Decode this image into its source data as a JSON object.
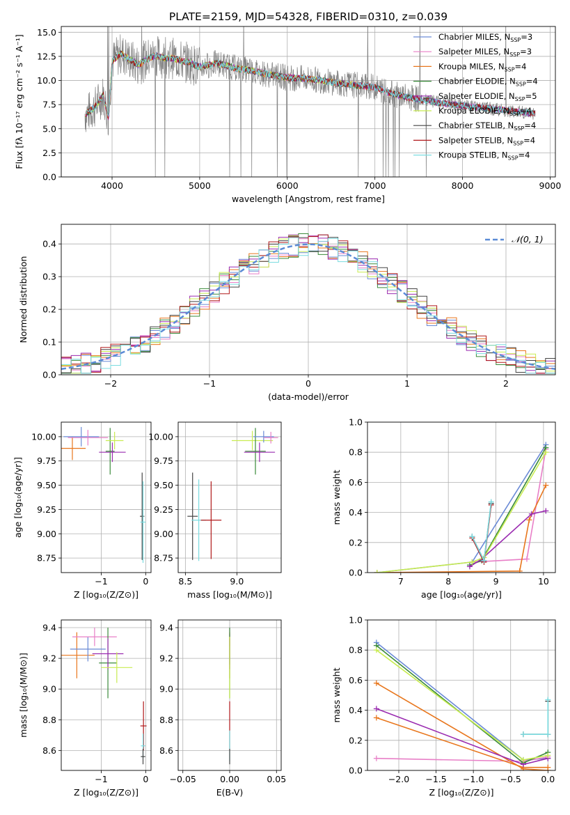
{
  "figure_title": "PLATE=2159, MJD=54328, FIBERID=0310, z=0.039",
  "model_colors": {
    "Chabrier MILES": "#6a8ad6",
    "Salpeter MILES": "#e87fc7",
    "Kroupa MILES": "#e8761c",
    "Chabrier ELODIE": "#3a8a3a",
    "Salpeter ELODIE": "#9a2ab0",
    "Kroupa ELODIE": "#c8ec50",
    "Chabrier STELIB": "#444444",
    "Salpeter STELIB": "#b0181a",
    "Kroupa STELIB": "#7adce0"
  },
  "chart_data": [
    {
      "id": "spectrum",
      "type": "line",
      "title": "PLATE=2159, MJD=54328, FIBERID=0310, z=0.039",
      "xlabel": "wavelength [Angstrom, rest frame]",
      "ylabel": "Flux [fλ 10⁻¹⁷ erg cm⁻² s⁻¹ A⁻¹]",
      "xlim": [
        3420,
        9060
      ],
      "ylim": [
        0,
        15.6
      ],
      "xticks": [
        4000,
        5000,
        6000,
        7000,
        8000,
        9000
      ],
      "yticks": [
        0.0,
        2.5,
        5.0,
        7.5,
        10.0,
        12.5,
        15.0
      ],
      "ytick_labels": [
        "0.0",
        "2.5",
        "5.0",
        "7.5",
        "10.0",
        "12.5",
        "15.0"
      ],
      "legend_position": "upper-right",
      "legend": [
        {
          "label": "Chabrier MILES, N",
          "sub": "SSP",
          "tail": "=3",
          "color": "#6a8ad6"
        },
        {
          "label": "Salpeter MILES, N",
          "sub": "SSP",
          "tail": "=3",
          "color": "#e87fc7"
        },
        {
          "label": "Kroupa MILES, N",
          "sub": "SSP",
          "tail": "=4",
          "color": "#e8761c"
        },
        {
          "label": "Chabrier ELODIE, N",
          "sub": "SSP",
          "tail": "=4",
          "color": "#3a8a3a"
        },
        {
          "label": "Salpeter ELODIE, N",
          "sub": "SSP",
          "tail": "=5",
          "color": "#9a2ab0"
        },
        {
          "label": "Kroupa ELODIE, N",
          "sub": "SSP",
          "tail": "=4",
          "color": "#c8ec50"
        },
        {
          "label": "Chabrier STELIB, N",
          "sub": "SSP",
          "tail": "=4",
          "color": "#444444"
        },
        {
          "label": "Salpeter STELIB, N",
          "sub": "SSP",
          "tail": "=4",
          "color": "#b0181a"
        },
        {
          "label": "Kroupa STELIB, N",
          "sub": "SSP",
          "tail": "=4",
          "color": "#7adce0"
        }
      ],
      "data_points": [
        [
          3700,
          6.5
        ],
        [
          3800,
          7.2
        ],
        [
          3900,
          8.5
        ],
        [
          3960,
          6.0
        ],
        [
          4000,
          12.0
        ],
        [
          4100,
          12.8
        ],
        [
          4200,
          12.2
        ],
        [
          4300,
          11.6
        ],
        [
          4400,
          12.2
        ],
        [
          4500,
          12.6
        ],
        [
          4600,
          12.3
        ],
        [
          4700,
          12.3
        ],
        [
          4800,
          12.0
        ],
        [
          4900,
          11.8
        ],
        [
          5000,
          11.4
        ],
        [
          5200,
          11.8
        ],
        [
          5400,
          11.3
        ],
        [
          5600,
          11.0
        ],
        [
          5800,
          10.6
        ],
        [
          6000,
          10.3
        ],
        [
          6200,
          10.2
        ],
        [
          6400,
          10.0
        ],
        [
          6600,
          9.7
        ],
        [
          6800,
          9.5
        ],
        [
          7000,
          9.3
        ],
        [
          7200,
          8.6
        ],
        [
          7400,
          8.2
        ],
        [
          7600,
          7.9
        ],
        [
          7800,
          7.6
        ],
        [
          8000,
          7.4
        ],
        [
          8200,
          7.2
        ],
        [
          8400,
          7.0
        ],
        [
          8600,
          6.8
        ],
        [
          8800,
          6.6
        ]
      ]
    },
    {
      "id": "residuals",
      "type": "line",
      "xlabel": "(data-model)/error",
      "ylabel": "Normed distribution",
      "xlim": [
        -2.5,
        2.5
      ],
      "ylim": [
        0,
        0.46
      ],
      "xticks": [
        -2,
        -1,
        0,
        1,
        2
      ],
      "xtick_labels": [
        "−2",
        "−1",
        "0",
        "1",
        "2"
      ],
      "yticks": [
        0.0,
        0.1,
        0.2,
        0.3,
        0.4
      ],
      "ytick_labels": [
        "0.0",
        "0.1",
        "0.2",
        "0.3",
        "0.4"
      ],
      "legend": [
        {
          "label": "𝒩(0, 1)",
          "color": "#5b8bd6",
          "dashed": true
        }
      ],
      "legend_position": "upper-right"
    },
    {
      "id": "age_vs_z",
      "type": "scatter",
      "xlabel": "Z [log₁₀(Z/Z⊙)]",
      "ylabel": "age  [log₁₀(age/yr)]",
      "xlim": [
        -1.9,
        0.12
      ],
      "ylim": [
        8.6,
        10.15
      ],
      "xticks": [
        -1,
        0
      ],
      "xtick_labels": [
        "−1",
        "0"
      ],
      "yticks": [
        8.75,
        9.0,
        9.25,
        9.5,
        9.75,
        10.0
      ],
      "ytick_labels": [
        "8.75",
        "9.00",
        "9.25",
        "9.50",
        "9.75",
        "10.00"
      ],
      "points": [
        {
          "model": "Kroupa MILES",
          "x": -1.65,
          "xe": 0.3,
          "y": 9.88,
          "ye": 0.12
        },
        {
          "model": "Chabrier MILES",
          "x": -1.45,
          "xe": 0.4,
          "y": 10.0,
          "ye": 0.1
        },
        {
          "model": "Salpeter MILES",
          "x": -1.3,
          "xe": 0.45,
          "y": 9.99,
          "ye": 0.08
        },
        {
          "model": "Chabrier ELODIE",
          "x": -0.8,
          "xe": 0.1,
          "y": 9.85,
          "ye": 0.24
        },
        {
          "model": "Salpeter ELODIE",
          "x": -0.75,
          "xe": 0.3,
          "y": 9.84,
          "ye": 0.1
        },
        {
          "model": "Kroupa ELODIE",
          "x": -0.7,
          "xe": 0.2,
          "y": 9.96,
          "ye": 0.09
        },
        {
          "model": "Chabrier STELIB",
          "x": -0.08,
          "xe": 0.05,
          "y": 9.18,
          "ye": 0.45
        },
        {
          "model": "Kroupa STELIB",
          "x": -0.06,
          "xe": 0.06,
          "y": 9.12,
          "ye": 0.42
        }
      ]
    },
    {
      "id": "age_vs_mass",
      "type": "scatter",
      "xlabel": "mass [log₁₀(M/M⊙)]",
      "ylabel": "",
      "xlim": [
        8.43,
        9.43
      ],
      "ylim": [
        8.6,
        10.15
      ],
      "xticks": [
        8.5,
        9.0
      ],
      "xtick_labels": [
        "8.5",
        "9.0"
      ],
      "yticks": [
        8.75,
        9.0,
        9.25,
        9.5,
        9.75,
        10.0
      ],
      "ytick_labels": [
        "8.75",
        "9.00",
        "9.25",
        "9.50",
        "9.75",
        "10.00"
      ],
      "points": [
        {
          "model": "Chabrier STELIB",
          "x": 8.57,
          "xe": 0.05,
          "y": 9.18,
          "ye": 0.45
        },
        {
          "model": "Kroupa STELIB",
          "x": 8.63,
          "xe": 0.07,
          "y": 9.14,
          "ye": 0.42
        },
        {
          "model": "Salpeter STELIB",
          "x": 8.75,
          "xe": 0.1,
          "y": 9.14,
          "ye": 0.4
        },
        {
          "model": "Kroupa ELODIE",
          "x": 9.15,
          "xe": 0.2,
          "y": 9.96,
          "ye": 0.1
        },
        {
          "model": "Chabrier ELODIE",
          "x": 9.18,
          "xe": 0.1,
          "y": 9.85,
          "ye": 0.24
        },
        {
          "model": "Salpeter ELODIE",
          "x": 9.22,
          "xe": 0.15,
          "y": 9.84,
          "ye": 0.1
        },
        {
          "model": "Chabrier MILES",
          "x": 9.26,
          "xe": 0.1,
          "y": 10.0,
          "ye": 0.06
        },
        {
          "model": "Salpeter MILES",
          "x": 9.33,
          "xe": 0.07,
          "y": 9.99,
          "ye": 0.06
        }
      ]
    },
    {
      "id": "massweight_vs_age",
      "type": "line",
      "xlabel": "age  [log₁₀(age/yr)]",
      "ylabel": "mass weight",
      "xlim": [
        6.3,
        10.25
      ],
      "ylim": [
        0,
        1.0
      ],
      "xticks": [
        7,
        8,
        9,
        10
      ],
      "xtick_labels": [
        "7",
        "8",
        "9",
        "10"
      ],
      "yticks": [
        0.0,
        0.2,
        0.4,
        0.6,
        0.8,
        1.0
      ],
      "ytick_labels": [
        "0.0",
        "0.2",
        "0.4",
        "0.6",
        "0.8",
        "1.0"
      ],
      "series": [
        {
          "model": "Chabrier MILES",
          "x": [
            6.5,
            8.5,
            10.05
          ],
          "y": [
            0.0,
            0.07,
            0.85
          ]
        },
        {
          "model": "Salpeter MILES",
          "x": [
            8.5,
            9.65,
            10.05
          ],
          "y": [
            0.07,
            0.09,
            0.82
          ]
        },
        {
          "model": "Kroupa MILES",
          "x": [
            6.5,
            9.5,
            9.7,
            10.05
          ],
          "y": [
            0.0,
            0.01,
            0.35,
            0.58
          ]
        },
        {
          "model": "Chabrier ELODIE",
          "x": [
            8.45,
            8.7,
            10.05
          ],
          "y": [
            0.05,
            0.08,
            0.83
          ]
        },
        {
          "model": "Salpeter ELODIE",
          "x": [
            8.45,
            8.7,
            9.75,
            10.05
          ],
          "y": [
            0.04,
            0.09,
            0.39,
            0.41
          ]
        },
        {
          "model": "Kroupa ELODIE",
          "x": [
            6.5,
            8.5,
            8.75,
            10.05
          ],
          "y": [
            0.0,
            0.07,
            0.1,
            0.8
          ]
        },
        {
          "model": "Chabrier STELIB",
          "x": [
            8.5,
            8.75,
            8.9
          ],
          "y": [
            0.24,
            0.08,
            0.46
          ]
        },
        {
          "model": "Salpeter STELIB",
          "x": [
            8.5,
            8.75,
            8.9
          ],
          "y": [
            0.23,
            0.07,
            0.45
          ]
        },
        {
          "model": "Kroupa STELIB",
          "x": [
            8.5,
            8.75,
            8.9
          ],
          "y": [
            0.24,
            0.08,
            0.47
          ]
        }
      ]
    },
    {
      "id": "mass_vs_z",
      "type": "scatter",
      "xlabel": "Z [log₁₀(Z/Z⊙)]",
      "ylabel": "mass [log₁₀(M/M⊙)]",
      "xlim": [
        -1.9,
        0.12
      ],
      "ylim": [
        8.47,
        9.45
      ],
      "xticks": [
        -1,
        0
      ],
      "xtick_labels": [
        "−1",
        "0"
      ],
      "yticks": [
        8.6,
        8.8,
        9.0,
        9.2,
        9.4
      ],
      "ytick_labels": [
        "8.6",
        "8.8",
        "9.0",
        "9.2",
        "9.4"
      ],
      "points": [
        {
          "model": "Kroupa MILES",
          "x": -1.55,
          "xe": 0.4,
          "y": 9.22,
          "ye": 0.15
        },
        {
          "model": "Chabrier MILES",
          "x": -1.3,
          "xe": 0.4,
          "y": 9.26,
          "ye": 0.08
        },
        {
          "model": "Salpeter MILES",
          "x": -1.15,
          "xe": 0.5,
          "y": 9.34,
          "ye": 0.06
        },
        {
          "model": "Chabrier ELODIE",
          "x": -0.85,
          "xe": 0.2,
          "y": 9.17,
          "ye": 0.23
        },
        {
          "model": "Salpeter ELODIE",
          "x": -0.85,
          "xe": 0.35,
          "y": 9.23,
          "ye": 0.1
        },
        {
          "model": "Kroupa ELODIE",
          "x": -0.65,
          "xe": 0.35,
          "y": 9.14,
          "ye": 0.1
        },
        {
          "model": "Salpeter STELIB",
          "x": -0.05,
          "xe": 0.07,
          "y": 8.76,
          "ye": 0.16
        },
        {
          "model": "Kroupa STELIB",
          "x": -0.06,
          "xe": 0.05,
          "y": 8.63,
          "ye": 0.08
        },
        {
          "model": "Chabrier STELIB",
          "x": -0.06,
          "xe": 0.05,
          "y": 8.56,
          "ye": 0.05
        }
      ]
    },
    {
      "id": "mass_vs_ebv",
      "type": "scatter",
      "xlabel": "E(B-V)",
      "ylabel": "",
      "xlim": [
        -0.055,
        0.055
      ],
      "ylim": [
        8.47,
        9.45
      ],
      "xticks": [
        -0.05,
        0.0,
        0.05
      ],
      "xtick_labels": [
        "−0.05",
        "0.00",
        "0.05"
      ],
      "yticks": [
        8.6,
        8.8,
        9.0,
        9.2,
        9.4
      ],
      "ytick_labels": [
        "8.6",
        "8.8",
        "9.0",
        "9.2",
        "9.4"
      ],
      "points": [
        {
          "model": "Chabrier MILES",
          "x": 0,
          "xe": 0,
          "y": 9.26,
          "ye": 0.1
        },
        {
          "model": "Salpeter MILES",
          "x": 0,
          "xe": 0,
          "y": 9.34,
          "ye": 0.06
        },
        {
          "model": "Kroupa MILES",
          "x": 0,
          "xe": 0,
          "y": 9.22,
          "ye": 0.15
        },
        {
          "model": "Chabrier ELODIE",
          "x": 0,
          "xe": 0,
          "y": 9.17,
          "ye": 0.23
        },
        {
          "model": "Salpeter ELODIE",
          "x": 0,
          "xe": 0,
          "y": 9.23,
          "ye": 0.1
        },
        {
          "model": "Kroupa ELODIE",
          "x": 0,
          "xe": 0,
          "y": 9.14,
          "ye": 0.2
        },
        {
          "model": "Salpeter STELIB",
          "x": 0,
          "xe": 0,
          "y": 8.76,
          "ye": 0.16
        },
        {
          "model": "Kroupa STELIB",
          "x": 0,
          "xe": 0,
          "y": 8.63,
          "ye": 0.1
        },
        {
          "model": "Chabrier STELIB",
          "x": 0,
          "xe": 0,
          "y": 8.56,
          "ye": 0.05
        }
      ]
    },
    {
      "id": "massweight_vs_z",
      "type": "line",
      "xlabel": "Z [log₁₀(Z/Z⊙)]",
      "ylabel": "mass weight",
      "xlim": [
        -2.42,
        0.1
      ],
      "ylim": [
        0,
        1.0
      ],
      "xticks": [
        -2.0,
        -1.5,
        -1.0,
        -0.5,
        0.0
      ],
      "xtick_labels": [
        "−2.0",
        "−1.5",
        "−1.0",
        "−0.5",
        "0.0"
      ],
      "yticks": [
        0.0,
        0.2,
        0.4,
        0.6,
        0.8,
        1.0
      ],
      "ytick_labels": [
        "0.0",
        "0.2",
        "0.4",
        "0.6",
        "0.8",
        "1.0"
      ],
      "series": [
        {
          "model": "Chabrier MILES",
          "x": [
            -2.3,
            -0.33,
            0.0
          ],
          "y": [
            0.85,
            0.07,
            0.08
          ]
        },
        {
          "model": "Salpeter MILES",
          "x": [
            -2.3,
            -0.33,
            0.0
          ],
          "y": [
            0.08,
            0.06,
            0.09
          ]
        },
        {
          "model": "Kroupa MILES",
          "x": [
            -2.3,
            -0.33,
            0.0
          ],
          "y": [
            0.58,
            0.01,
            0.0
          ]
        },
        {
          "model": "Kroupa MILES",
          "x": [
            -2.3,
            -0.33,
            0.0
          ],
          "y": [
            0.35,
            0.02,
            0.02
          ]
        },
        {
          "model": "Chabrier ELODIE",
          "x": [
            -2.3,
            -0.33,
            0.0
          ],
          "y": [
            0.83,
            0.05,
            0.12
          ]
        },
        {
          "model": "Salpeter ELODIE",
          "x": [
            -2.3,
            -0.33,
            0.0
          ],
          "y": [
            0.41,
            0.04,
            0.08
          ]
        },
        {
          "model": "Kroupa ELODIE",
          "x": [
            -2.3,
            -0.33,
            0.0
          ],
          "y": [
            0.8,
            0.07,
            0.1
          ]
        },
        {
          "model": "Chabrier STELIB",
          "x": [
            -0.33,
            0.0,
            0.0
          ],
          "y": [
            0.24,
            0.24,
            0.46
          ]
        },
        {
          "model": "Kroupa STELIB",
          "x": [
            -0.33,
            0.0,
            0.0
          ],
          "y": [
            0.24,
            0.24,
            0.47
          ]
        }
      ]
    }
  ]
}
